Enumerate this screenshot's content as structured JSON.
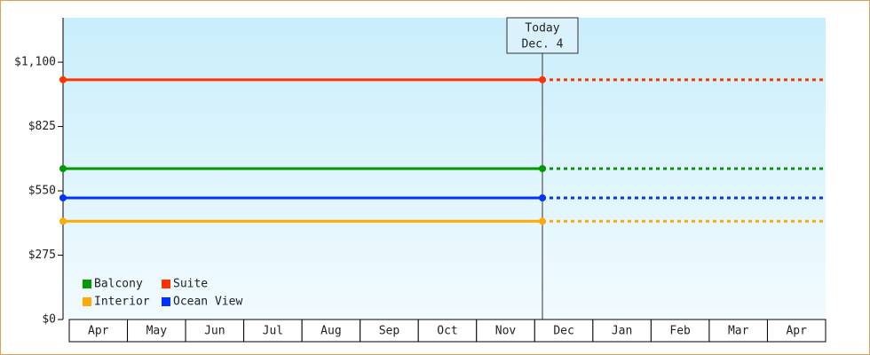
{
  "chart_data": {
    "type": "line",
    "categories": [
      "Apr",
      "May",
      "Jun",
      "Jul",
      "Aug",
      "Sep",
      "Oct",
      "Nov",
      "Dec",
      "Jan",
      "Feb",
      "Mar",
      "Apr"
    ],
    "series": [
      {
        "name": "Balcony",
        "color": "#009900",
        "value": 645
      },
      {
        "name": "Suite",
        "color": "#ff3300",
        "value": 1025
      },
      {
        "name": "Interior",
        "color": "#ffaa00",
        "value": 420
      },
      {
        "name": "Ocean View",
        "color": "#0033ff",
        "value": 520
      }
    ],
    "annotation": {
      "title": "Today",
      "date": "Dec. 4"
    },
    "ylim": [
      0,
      1290
    ],
    "yticks": [
      {
        "value": 0,
        "label": "$0"
      },
      {
        "value": 275,
        "label": "$275"
      },
      {
        "value": 550,
        "label": "$550"
      },
      {
        "value": 825,
        "label": "$825"
      },
      {
        "value": 1100,
        "label": "$1,100"
      }
    ],
    "legend": "lower left"
  }
}
